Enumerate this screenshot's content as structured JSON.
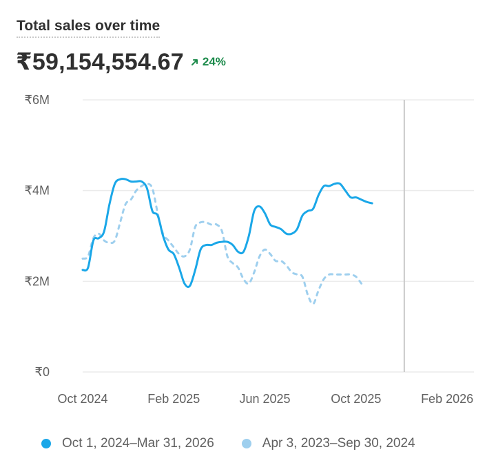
{
  "header": {
    "title": "Total sales over time",
    "total": "₹59,154,554.67",
    "change": "24%",
    "change_color": "#1b8a4a"
  },
  "legend": {
    "current_label": "Oct 1, 2024–Mar 31, 2026",
    "previous_label": "Apr 3, 2023–Sep 30, 2024"
  },
  "chart_data": {
    "type": "line",
    "title": "Total sales over time",
    "xlabel": "",
    "ylabel": "",
    "ylim": [
      0,
      6000000
    ],
    "y_ticks": [
      "₹0",
      "₹2M",
      "₹4M",
      "₹6M"
    ],
    "y_tick_values": [
      0,
      2000000,
      4000000,
      6000000
    ],
    "x_tick_labels": [
      "Oct 2024",
      "Feb 2025",
      "Jun 2025",
      "Oct 2025",
      "Feb 2026"
    ],
    "x_tick_weeks": [
      0,
      17,
      34,
      51,
      68
    ],
    "x_range_weeks": [
      0,
      73
    ],
    "grid": true,
    "highlight_week": 60,
    "series": [
      {
        "name": "Oct 1, 2024–Mar 31, 2026",
        "color": "#1aa7e8",
        "style": "solid",
        "values": [
          2250000,
          2300000,
          2900000,
          2950000,
          3100000,
          3700000,
          4150000,
          4250000,
          4250000,
          4200000,
          4200000,
          4200000,
          4050000,
          3550000,
          3450000,
          3000000,
          2700000,
          2600000,
          2300000,
          1950000,
          1900000,
          2250000,
          2700000,
          2800000,
          2800000,
          2850000,
          2870000,
          2870000,
          2800000,
          2650000,
          2650000,
          3000000,
          3550000,
          3650000,
          3500000,
          3250000,
          3200000,
          3150000,
          3050000,
          3050000,
          3150000,
          3450000,
          3550000,
          3600000,
          3900000,
          4100000,
          4100000,
          4150000,
          4150000,
          4000000,
          3850000,
          3850000,
          3800000,
          3750000,
          3720000
        ]
      },
      {
        "name": "Apr 3, 2023–Sep 30, 2024",
        "color": "#9ecfee",
        "style": "dashed",
        "values": [
          2500000,
          2550000,
          2950000,
          3050000,
          2900000,
          2850000,
          2900000,
          3300000,
          3700000,
          3800000,
          4000000,
          4100000,
          4150000,
          4050000,
          3500000,
          3050000,
          2900000,
          2750000,
          2600000,
          2550000,
          2700000,
          3200000,
          3300000,
          3300000,
          3250000,
          3250000,
          3100000,
          2550000,
          2400000,
          2300000,
          2050000,
          1950000,
          2200000,
          2550000,
          2700000,
          2600000,
          2450000,
          2450000,
          2350000,
          2200000,
          2150000,
          2100000,
          1700000,
          1500000,
          1800000,
          2050000,
          2150000,
          2150000,
          2150000,
          2150000,
          2150000,
          2100000,
          1950000
        ]
      }
    ]
  }
}
